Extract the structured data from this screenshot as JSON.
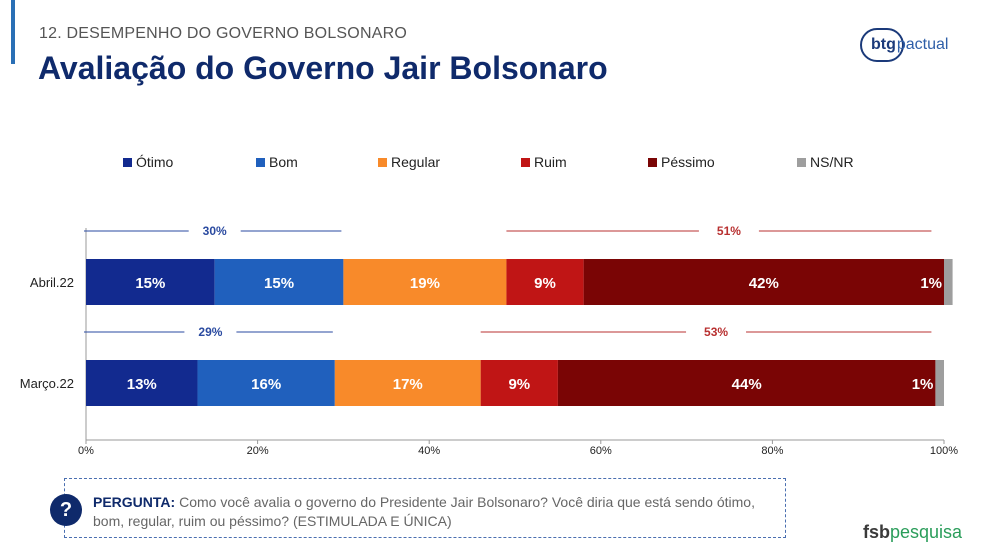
{
  "header": {
    "section": "12. DESEMPENHO DO GOVERNO BOLSONARO",
    "title": "Avaliação do Governo Jair Bolsonaro",
    "logo_bold": "btg",
    "logo_light": "pactual"
  },
  "colors": {
    "otimo": "#122a8f",
    "bom": "#2060bd",
    "regular": "#f88a2a",
    "ruim": "#c01515",
    "pessimo": "#7a0505",
    "nsnr": "#9e9e9e",
    "positive_group": "#2a4aa0",
    "negative_group": "#b83030"
  },
  "chart_data": {
    "type": "bar",
    "orientation": "horizontal",
    "stacked": true,
    "categories": [
      "Abril.22",
      "Março.22"
    ],
    "series": [
      {
        "name": "Ótimo",
        "values": [
          15,
          13
        ],
        "labels": [
          "15%",
          "13%"
        ]
      },
      {
        "name": "Bom",
        "values": [
          15,
          16
        ],
        "labels": [
          "15%",
          "16%"
        ]
      },
      {
        "name": "Regular",
        "values": [
          19,
          17
        ],
        "labels": [
          "19%",
          "17%"
        ]
      },
      {
        "name": "Ruim",
        "values": [
          9,
          9
        ],
        "labels": [
          "9%",
          "9%"
        ]
      },
      {
        "name": "Péssimo",
        "values": [
          42,
          44
        ],
        "labels": [
          "42%",
          "44%"
        ]
      },
      {
        "name": "NS/NR",
        "values": [
          1,
          1
        ],
        "labels": [
          "1%",
          "1%"
        ]
      }
    ],
    "groups": [
      {
        "category": "Abril.22",
        "positive": "30%",
        "negative": "51%"
      },
      {
        "category": "Março.22",
        "positive": "29%",
        "negative": "53%"
      }
    ],
    "x_ticks": [
      "0%",
      "20%",
      "40%",
      "60%",
      "80%",
      "100%"
    ],
    "xlim": [
      0,
      100
    ],
    "legend_position": "top"
  },
  "question": {
    "icon": "?",
    "label": "PERGUNTA:",
    "text": "Como você avalia o governo do Presidente Jair Bolsonaro? Você diria que está sendo ótimo, bom, regular, ruim ou péssimo? (ESTIMULADA E ÚNICA)"
  },
  "footer": {
    "brand_a": "fsb",
    "brand_b": "pesquisa"
  }
}
